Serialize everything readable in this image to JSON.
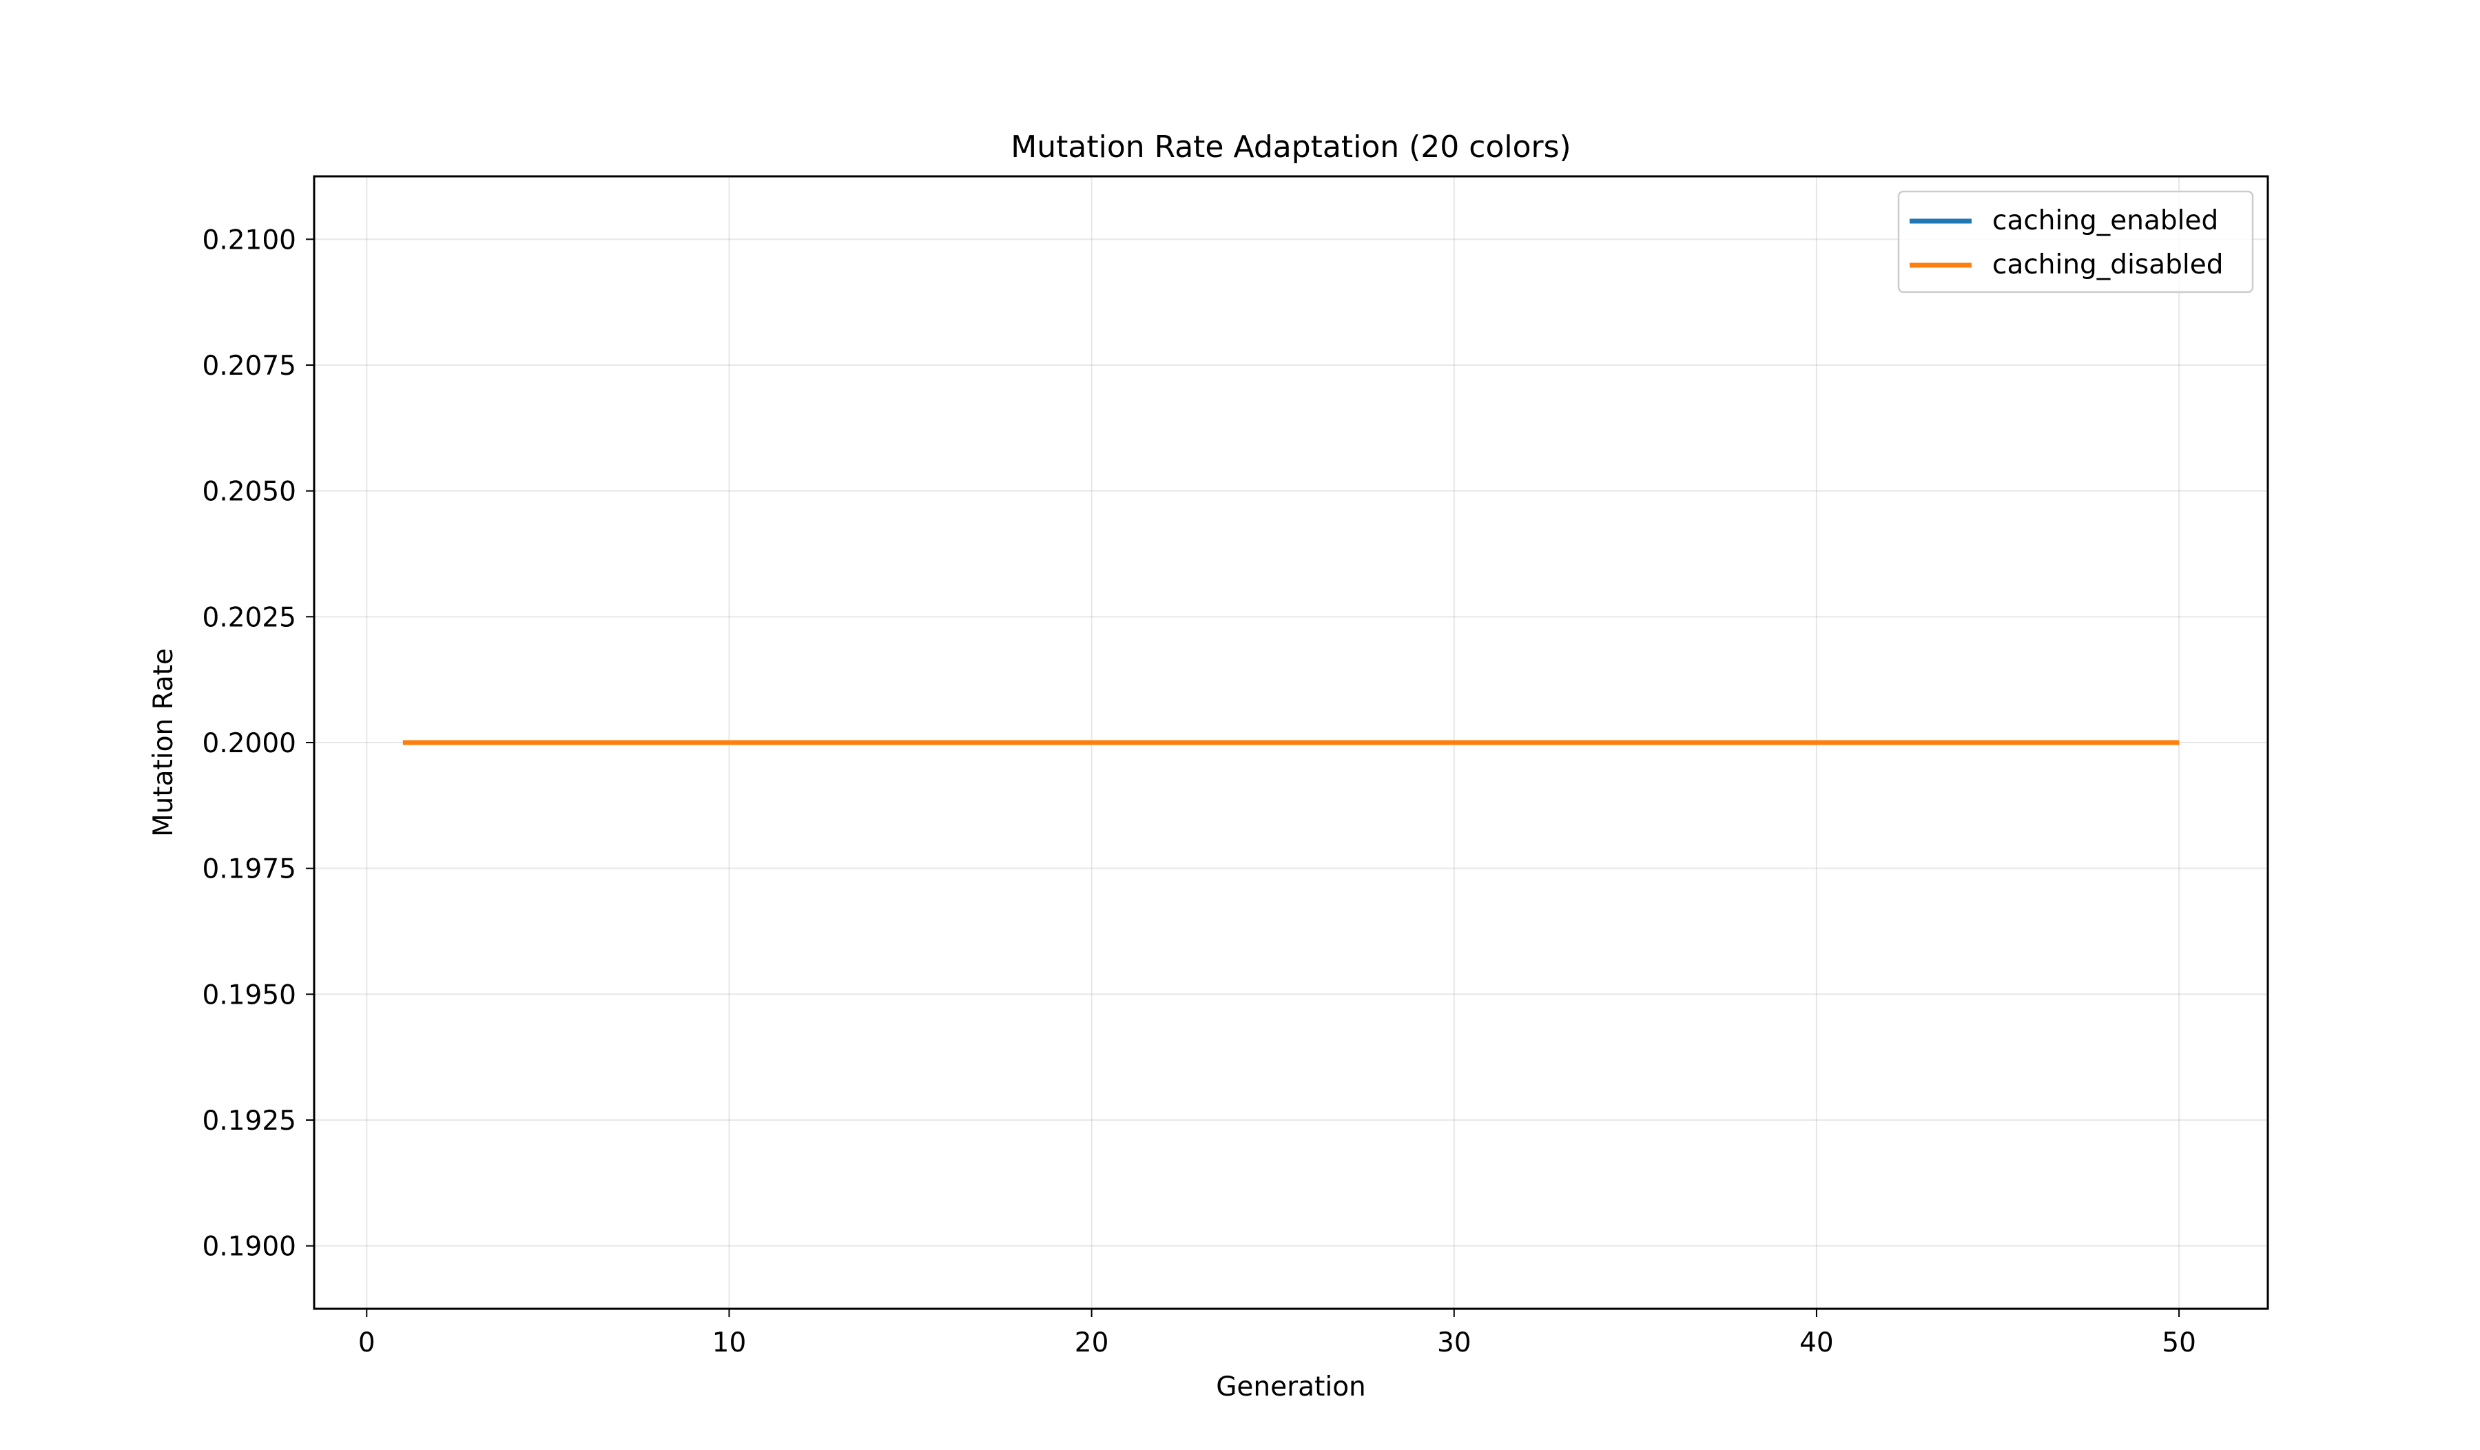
{
  "chart_data": {
    "type": "line",
    "title": "Mutation Rate Adaptation (20 colors)",
    "xlabel": "Generation",
    "ylabel": "Mutation Rate",
    "xlim": [
      -1.45,
      52.45
    ],
    "ylim": [
      0.18875,
      0.21125
    ],
    "xticks": [
      0,
      10,
      20,
      30,
      40,
      50
    ],
    "xtick_labels": [
      "0",
      "10",
      "20",
      "30",
      "40",
      "50"
    ],
    "yticks": [
      0.19,
      0.1925,
      0.195,
      0.1975,
      0.2,
      0.2025,
      0.205,
      0.2075,
      0.21
    ],
    "ytick_labels": [
      "0.1900",
      "0.1925",
      "0.1950",
      "0.1975",
      "0.2000",
      "0.2025",
      "0.2050",
      "0.2075",
      "0.2100"
    ],
    "grid": true,
    "legend_position": "top-right",
    "series": [
      {
        "name": "caching_enabled",
        "color": "#1f77b4",
        "x": [
          1,
          50
        ],
        "y": [
          0.2,
          0.2
        ]
      },
      {
        "name": "caching_disabled",
        "color": "#ff7f0e",
        "x": [
          1,
          50
        ],
        "y": [
          0.2,
          0.2
        ]
      }
    ]
  }
}
